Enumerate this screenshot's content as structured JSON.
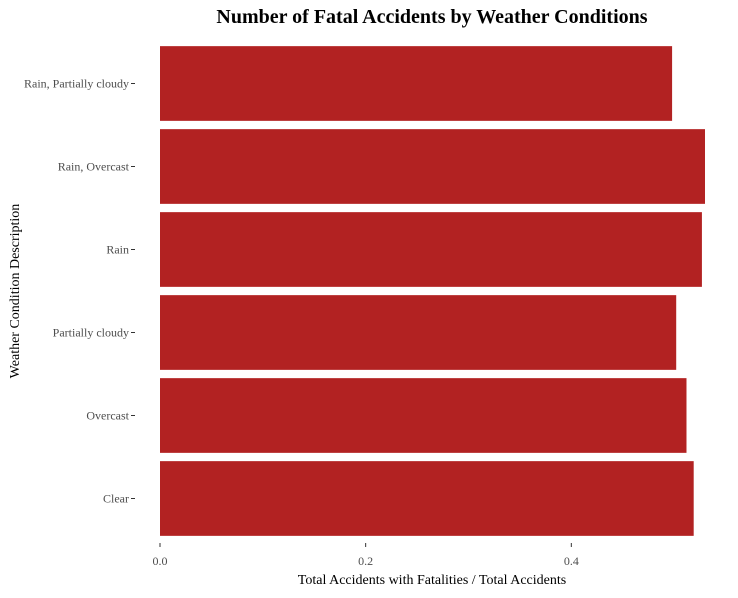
{
  "chart_data": {
    "type": "bar",
    "orientation": "horizontal",
    "title": "Number of Fatal Accidents by Weather Conditions",
    "xlabel": "Total Accidents with Fatalities / Total Accidents",
    "ylabel": "Weather Condition Description",
    "categories": [
      "Clear",
      "Overcast",
      "Partially cloudy",
      "Rain",
      "Rain, Overcast",
      "Rain, Partially cloudy"
    ],
    "values": [
      0.519,
      0.512,
      0.502,
      0.527,
      0.53,
      0.498
    ],
    "xlim": [
      0,
      0.53
    ],
    "xticks": [
      0.0,
      0.2,
      0.4
    ],
    "xtick_labels": [
      "0.0",
      "0.2",
      "0.4"
    ],
    "bar_color": "#b22222",
    "grid": false,
    "legend": "none"
  }
}
